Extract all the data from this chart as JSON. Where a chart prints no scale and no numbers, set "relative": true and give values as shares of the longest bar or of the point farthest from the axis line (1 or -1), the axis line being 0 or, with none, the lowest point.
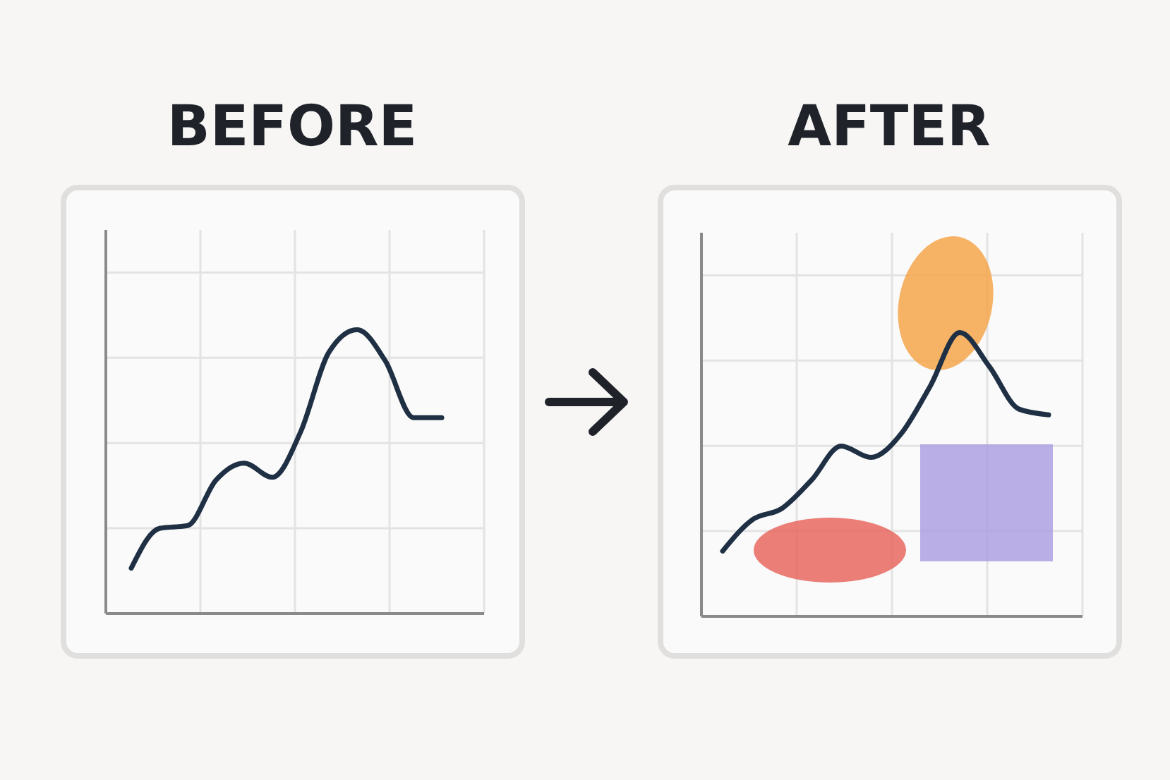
{
  "chart_data": [
    {
      "type": "line",
      "title": "BEFORE",
      "relative": true,
      "grid": true,
      "categories": [
        null,
        null,
        null,
        null,
        null,
        null,
        null,
        null,
        null,
        null,
        null,
        null
      ],
      "series": [
        {
          "color": "#1f3044",
          "values": [
            0.16,
            0.3,
            0.31,
            0.47,
            0.53,
            0.48,
            0.64,
            0.92,
            1,
            0.89,
            0.69,
            0.69
          ]
        }
      ]
    },
    {
      "type": "line",
      "title": "AFTER",
      "relative": true,
      "grid": true,
      "categories": [
        null,
        null,
        null,
        null,
        null,
        null,
        null,
        null,
        null,
        null,
        null,
        null
      ],
      "series": [
        {
          "color": "#1f3044",
          "values": [
            0.23,
            0.34,
            0.38,
            0.48,
            0.6,
            0.56,
            0.64,
            0.81,
            1,
            0.88,
            0.73,
            0.71
          ]
        }
      ]
    }
  ]
}
